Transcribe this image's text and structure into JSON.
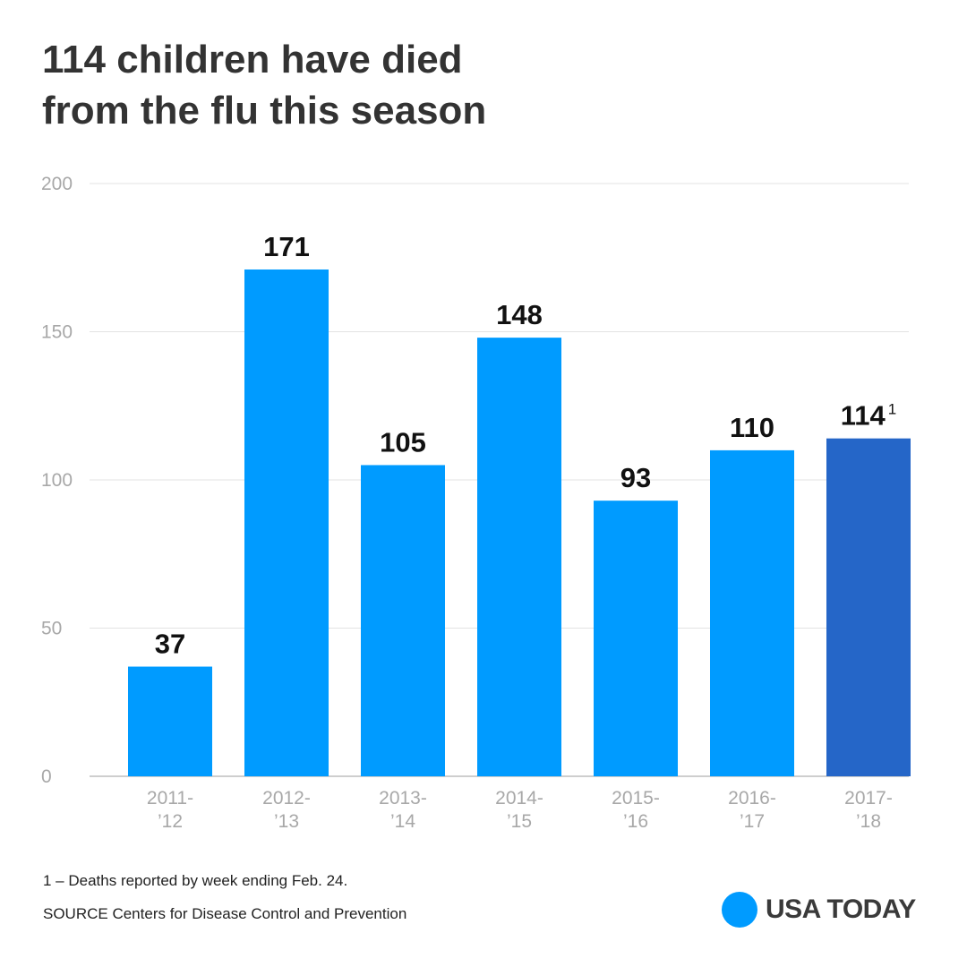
{
  "title": {
    "line1": "114 children have died",
    "line2": "from the flu this season"
  },
  "footnote": "1 – Deaths reported by week ending Feb. 24.",
  "source": "SOURCE  Centers for Disease Control and Prevention",
  "logo": {
    "text": "USA TODAY",
    "circle_color": "#009bff"
  },
  "chart_data": {
    "type": "bar",
    "title": "114 children have died from the flu this season",
    "xlabel": "",
    "ylabel": "",
    "ylim": [
      0,
      200
    ],
    "yticks": [
      0,
      50,
      100,
      150,
      200
    ],
    "grid": true,
    "categories": [
      [
        "2011-",
        "’12"
      ],
      [
        "2012-",
        "’13"
      ],
      [
        "2013-",
        "’14"
      ],
      [
        "2014-",
        "’15"
      ],
      [
        "2015-",
        "’16"
      ],
      [
        "2016-",
        "’17"
      ],
      [
        "2017-",
        "’18"
      ]
    ],
    "values": [
      37,
      171,
      105,
      148,
      93,
      110,
      114
    ],
    "value_labels": [
      "37",
      "171",
      "105",
      "148",
      "93",
      "110",
      "114"
    ],
    "label_superscripts": [
      "",
      "",
      "",
      "",
      "",
      "",
      "1"
    ],
    "colors": [
      "#009bff",
      "#009bff",
      "#009bff",
      "#009bff",
      "#009bff",
      "#009bff",
      "#2566c8"
    ]
  }
}
